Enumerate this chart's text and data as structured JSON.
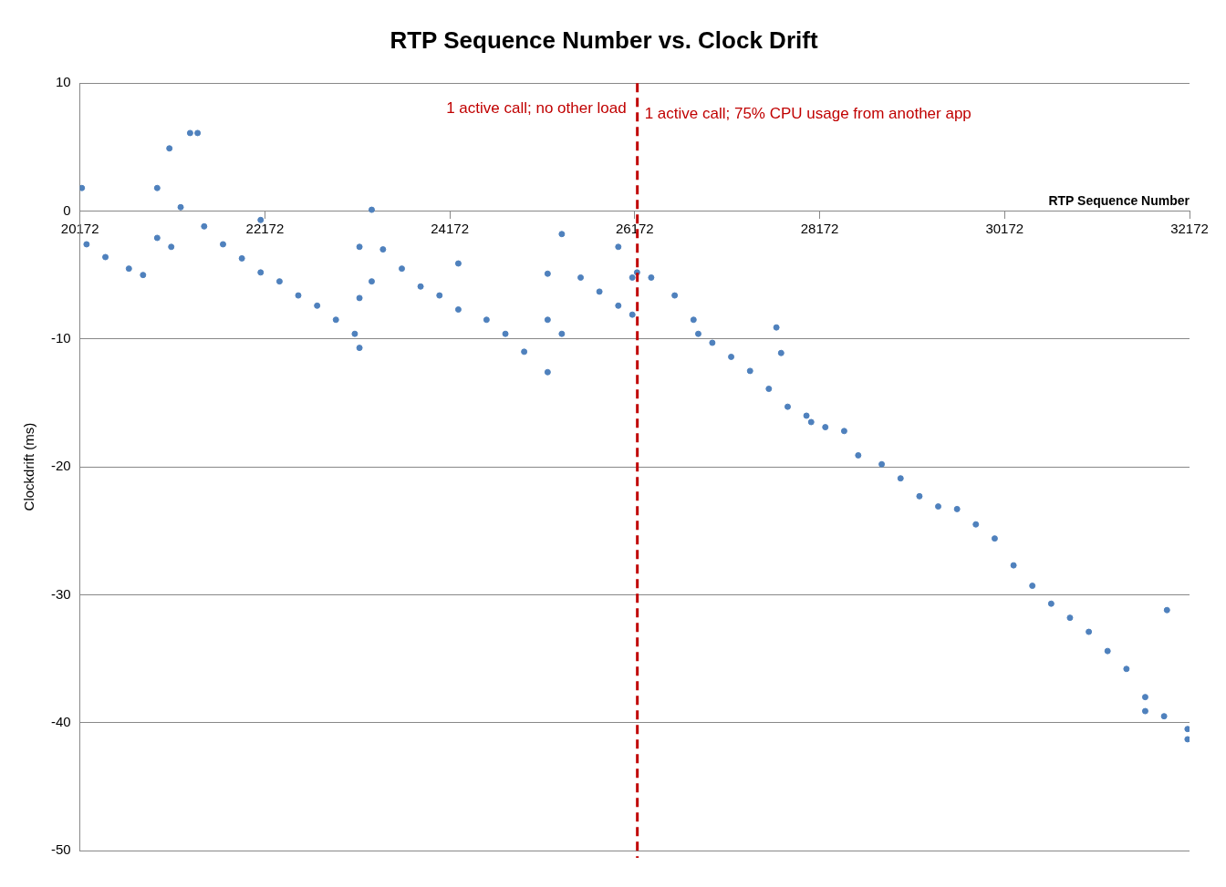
{
  "chart_data": {
    "type": "scatter",
    "title": "RTP Sequence Number vs. Clock Drift",
    "xlabel": "RTP Sequence Number",
    "ylabel": "Clockdrift (ms)",
    "xlim": [
      20172,
      32172
    ],
    "xticks": [
      20172,
      22172,
      24172,
      26172,
      28172,
      30172,
      32172
    ],
    "ylim": [
      -50,
      10
    ],
    "yticks": [
      -50,
      -40,
      -30,
      -20,
      -10,
      0,
      10
    ],
    "grid": "y",
    "legend": false,
    "marker": "circle",
    "ref_lines": [
      {
        "axis": "x",
        "value": 26200,
        "label": null,
        "color": "#c00000",
        "line_style": "dashed"
      }
    ],
    "annotations": [
      "1 active call; no other load",
      "1 active call; 75% CPU usage from another app"
    ],
    "series": [
      {
        "color": "#4f81bd",
        "x": [
          20192,
          20243,
          20447,
          20701,
          20854,
          21007,
          21007,
          21159,
          21139,
          21261,
          21515,
          21719,
          21923,
          22126,
          22126,
          22330,
          22533,
          22737,
          22940,
          23144,
          23195,
          23195,
          21363,
          21444,
          23195,
          23327,
          23327,
          23449,
          23653,
          23856,
          24060,
          24264,
          24264,
          24569,
          24773,
          24976,
          25230,
          25230,
          25230,
          25383,
          25383,
          25587,
          25790,
          25994,
          26146,
          26146,
          25994,
          26197,
          26350,
          26604,
          26808,
          26859,
          27011,
          27215,
          27419,
          27622,
          27826,
          28029,
          28080,
          28233,
          28437,
          28589,
          28843,
          29047,
          29251,
          29454,
          29658,
          29861,
          30065,
          30269,
          30472,
          30676,
          30879,
          31083,
          31286,
          31490,
          31693,
          31897,
          32151,
          27704,
          27755,
          31928,
          31693,
          32151
        ],
        "values": [
          1.8,
          -2.6,
          -3.6,
          -4.5,
          -5.0,
          -2.1,
          1.8,
          -2.8,
          4.9,
          0.3,
          -1.2,
          -2.6,
          -3.7,
          -0.7,
          -4.8,
          -5.5,
          -6.6,
          -7.4,
          -8.5,
          -9.6,
          -6.8,
          -10.7,
          6.1,
          6.1,
          -2.8,
          0.1,
          -5.5,
          -3.0,
          -4.5,
          -5.9,
          -6.6,
          -4.1,
          -7.7,
          -8.5,
          -9.6,
          -11.0,
          -8.5,
          -12.6,
          -4.9,
          -9.6,
          -1.8,
          -5.2,
          -6.3,
          -7.4,
          -5.2,
          -8.1,
          -2.8,
          -4.8,
          -5.2,
          -6.6,
          -8.5,
          -9.6,
          -10.3,
          -11.4,
          -12.5,
          -13.9,
          -15.3,
          -16.0,
          -16.5,
          -16.9,
          -17.2,
          -19.1,
          -19.8,
          -20.9,
          -22.3,
          -23.1,
          -23.3,
          -24.5,
          -25.6,
          -27.7,
          -29.3,
          -30.7,
          -31.8,
          -32.9,
          -34.4,
          -35.8,
          -38.0,
          -39.5,
          -41.3,
          -9.1,
          -11.1,
          -31.2,
          -39.1,
          -40.5
        ]
      }
    ]
  }
}
